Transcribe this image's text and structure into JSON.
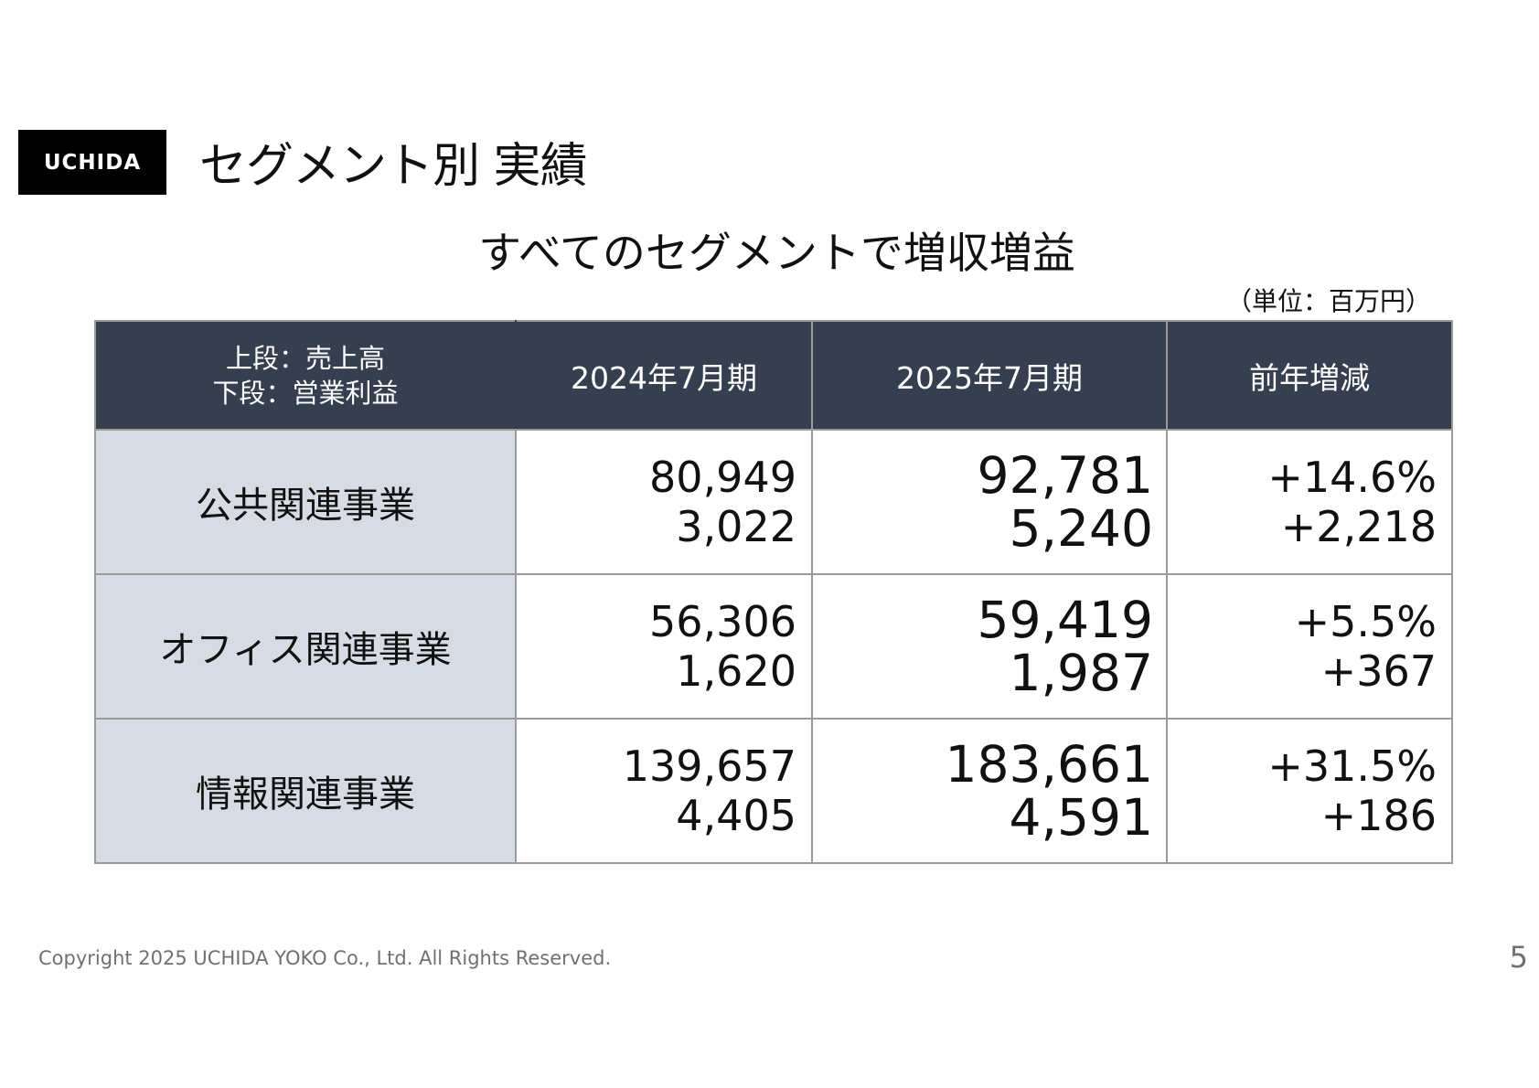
{
  "logo": {
    "text": "UCHIDA"
  },
  "page_title": "セグメント別 実績",
  "subtitle": "すべてのセグメントで増収増益",
  "unit_note": "（単位：百万円）",
  "table": {
    "header": {
      "corner_line1": "上段：売上高",
      "corner_line2": "下段：営業利益",
      "col_2024": "2024年7月期",
      "col_2025": "2025年7月期",
      "col_diff": "前年増減"
    },
    "rows": [
      {
        "segment": "公共関連事業",
        "sales_2024": "80,949",
        "profit_2024": "3,022",
        "sales_2025": "92,781",
        "profit_2025": "5,240",
        "sales_change": "+14.6%",
        "profit_change": "+2,218"
      },
      {
        "segment": "オフィス関連事業",
        "sales_2024": "56,306",
        "profit_2024": "1,620",
        "sales_2025": "59,419",
        "profit_2025": "1,987",
        "sales_change": "+5.5%",
        "profit_change": "+367"
      },
      {
        "segment": "情報関連事業",
        "sales_2024": "139,657",
        "profit_2024": "4,405",
        "sales_2025": "183,661",
        "profit_2025": "4,591",
        "sales_change": "+31.5%",
        "profit_change": "+186"
      }
    ]
  },
  "footer": {
    "copyright": "Copyright 2025 UCHIDA YOKO Co., Ltd. All Rights Reserved.",
    "page_number": "5"
  },
  "colors": {
    "header_bg": "#353f50",
    "segment_cell_bg": "#d7dce4",
    "logo_bg": "#000000"
  }
}
